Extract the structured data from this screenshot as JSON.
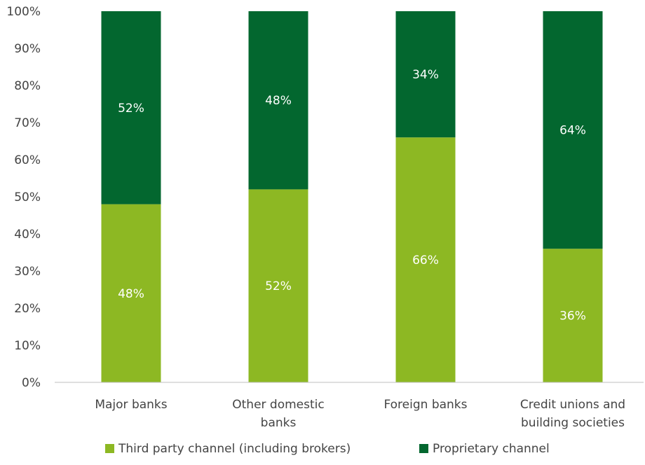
{
  "chart_data": {
    "type": "bar",
    "stacked": true,
    "categories": [
      [
        "Major banks"
      ],
      [
        "Other domestic",
        "banks"
      ],
      [
        "Foreign banks"
      ],
      [
        "Credit unions and",
        "building societies"
      ]
    ],
    "series": [
      {
        "name": "Third party channel (including brokers)",
        "color": "#8db823",
        "values": [
          48,
          52,
          66,
          36
        ]
      },
      {
        "name": "Proprietary channel",
        "color": "#03672f",
        "values": [
          52,
          48,
          34,
          64
        ]
      }
    ],
    "data_labels": [
      [
        "48%",
        "52%",
        "66%",
        "36%"
      ],
      [
        "52%",
        "48%",
        "34%",
        "64%"
      ]
    ],
    "ylim": [
      0,
      100
    ],
    "yticks": [
      "0%",
      "10%",
      "20%",
      "30%",
      "40%",
      "50%",
      "60%",
      "70%",
      "80%",
      "90%",
      "100%"
    ],
    "grid": false,
    "legend_position": "bottom"
  }
}
